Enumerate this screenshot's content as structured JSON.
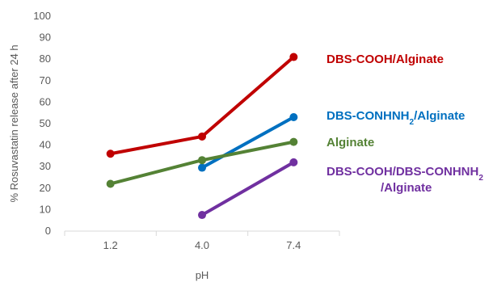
{
  "chart_data": {
    "type": "line",
    "categories": [
      "1.2",
      "4.0",
      "7.4"
    ],
    "xlabel": "pH",
    "ylabel": "% Rosuvastatin release after 24 h",
    "ylim": [
      0,
      100
    ],
    "yticks": [
      0,
      10,
      20,
      30,
      40,
      50,
      60,
      70,
      80,
      90,
      100
    ],
    "grid": false,
    "legend": "right",
    "series": [
      {
        "name": "DBS-COOH/Alginate",
        "color": "#C00000",
        "values": [
          36,
          44,
          81
        ]
      },
      {
        "name": "DBS-CONHNH2/Alginate",
        "name_parts": [
          "DBS-CONHNH",
          "2",
          "/Alginate"
        ],
        "color": "#0070C0",
        "values": [
          null,
          29.5,
          53
        ]
      },
      {
        "name": "Alginate",
        "color": "#548235",
        "values": [
          22,
          33,
          41.5
        ]
      },
      {
        "name": "DBS-COOH/DBS-CONHNH2/Alginate",
        "name_parts": [
          "DBS-COOH/DBS-CONHNH",
          "2",
          "/Alginate"
        ],
        "color": "#7030A0",
        "values": [
          null,
          7.5,
          32
        ]
      }
    ]
  }
}
